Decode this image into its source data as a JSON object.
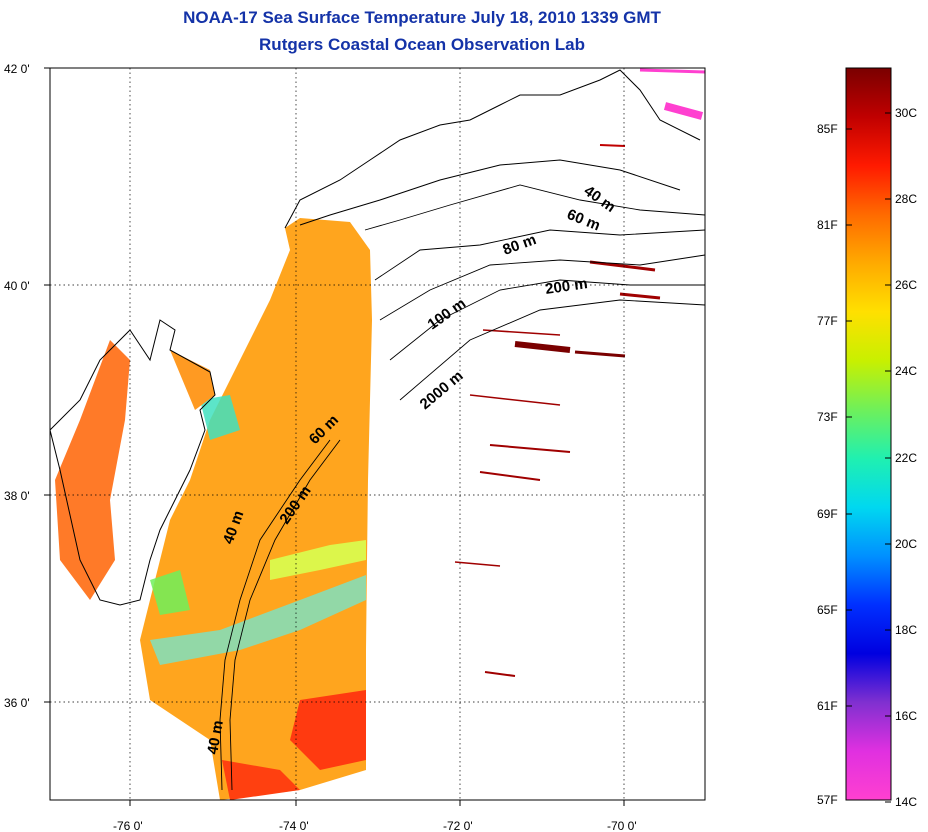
{
  "title": {
    "line1": "NOAA-17 Sea Surface Temperature July 18, 2010 1339 GMT",
    "line2": "Rutgers Coastal Ocean Observation Lab"
  },
  "axes": {
    "lon_ticks": [
      {
        "value": -76,
        "label": "-76 0'"
      },
      {
        "value": -74,
        "label": "-74 0'"
      },
      {
        "value": -72,
        "label": "-72 0'"
      },
      {
        "value": -70,
        "label": "-70 0'"
      }
    ],
    "lat_ticks": [
      {
        "value": 42,
        "label": "42 0'"
      },
      {
        "value": 40,
        "label": "40 0'"
      },
      {
        "value": 38,
        "label": "38 0'"
      },
      {
        "value": 36,
        "label": "36 0'"
      }
    ]
  },
  "contours": [
    {
      "label": "40 m"
    },
    {
      "label": "60 m"
    },
    {
      "label": "80 m"
    },
    {
      "label": "200 m"
    },
    {
      "label": "100 m"
    },
    {
      "label": "2000 m"
    },
    {
      "label": "60 m"
    },
    {
      "label": "200 m"
    },
    {
      "label": "40 m"
    },
    {
      "label": "40 m"
    }
  ],
  "colorbar": {
    "fahrenheit": [
      "85F",
      "81F",
      "77F",
      "73F",
      "69F",
      "65F",
      "61F",
      "57F"
    ],
    "celsius": [
      "30C",
      "28C",
      "26C",
      "24C",
      "22C",
      "20C",
      "18C",
      "16C",
      "14C"
    ],
    "colors": [
      "#7a0000",
      "#c00000",
      "#ff1a00",
      "#ff6a00",
      "#ffaa00",
      "#ffe000",
      "#c8f000",
      "#6ff05a",
      "#20f0b0",
      "#00d8f0",
      "#0090ff",
      "#0030ff",
      "#0000e0",
      "#8030d0",
      "#e030e0",
      "#ff40d0"
    ]
  }
}
